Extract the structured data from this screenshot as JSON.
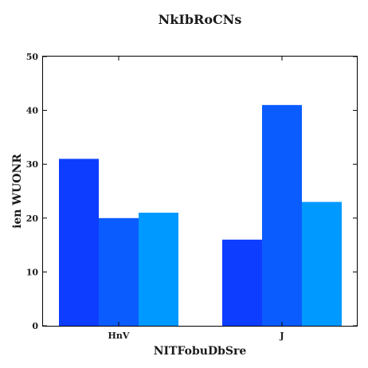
{
  "chart_data": {
    "type": "bar",
    "title": "NkIbRoCNs",
    "xlabel": "NITFobuDbSre",
    "ylabel": "ien WUONR",
    "categories": [
      "HnV",
      "J"
    ],
    "series": [
      {
        "values": [
          31,
          16
        ],
        "color": "#0d3dff"
      },
      {
        "values": [
          20,
          41
        ],
        "color": "#0b5cff"
      },
      {
        "values": [
          21,
          23
        ],
        "color": "#0099ff"
      }
    ],
    "ylim": [
      0,
      50
    ],
    "yticks": [
      0,
      10,
      20,
      30,
      40,
      50
    ],
    "grid": false,
    "legend": "none"
  }
}
